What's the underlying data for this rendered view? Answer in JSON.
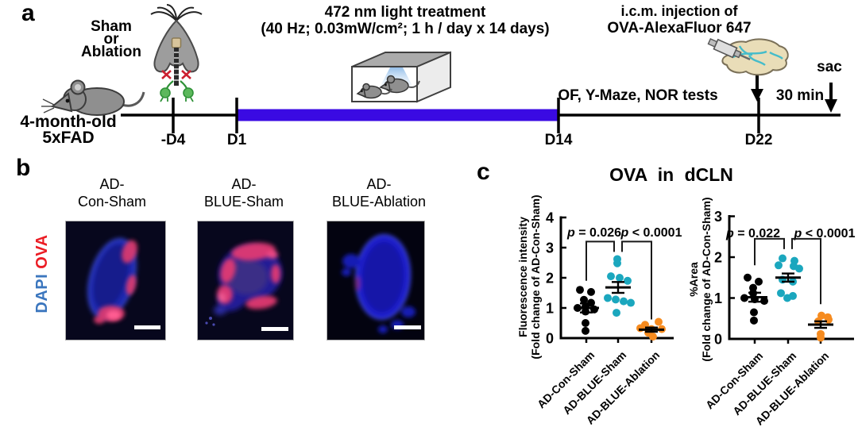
{
  "panel_a": {
    "label": "a",
    "subject_line1": "4-month-old",
    "subject_line2": "5xFAD",
    "surgery_line1": "Sham",
    "surgery_line2": "or",
    "surgery_line3": "Ablation",
    "light_title": "472 nm light treatment",
    "light_params": "(40 Hz; 0.03mW/cm²; 1 h / day x 14 days)",
    "icm_line1": "i.c.m. injection of",
    "icm_line2": "OVA-AlexaFluor 647",
    "tests_label": "OF, Y-Maze, NOR tests",
    "wait_label": "30 min",
    "sac_label": "sac",
    "timeline_ticks": [
      "-D4",
      "D1",
      "D14",
      "D22"
    ],
    "treatment_bar_color": "#3A0AE3"
  },
  "panel_b": {
    "label": "b",
    "stain_blue": "DAPI",
    "stain_red": "OVA",
    "stain_blue_color": "#3B76BE",
    "stain_red_color": "#EB1C24",
    "images": [
      {
        "line1": "AD-",
        "line2": "Con-Sham"
      },
      {
        "line1": "AD-",
        "line2": "BLUE-Sham"
      },
      {
        "line1": "AD-",
        "line2": "BLUE-Ablation"
      }
    ]
  },
  "panel_c": {
    "label": "c",
    "title": "OVA in dCLN"
  },
  "chart_data": [
    {
      "type": "scatter",
      "title": "OVA in dCLN",
      "ylabel": "Fluorescence intensity",
      "ylabel2": "(Fold change of AD-Con-Sham)",
      "xlabel": "",
      "ylim": [
        0,
        4
      ],
      "yticks": [
        0,
        1,
        2,
        3,
        4
      ],
      "grid": false,
      "categories": [
        "AD-Con-Sham",
        "AD-BLUE-Sham",
        "AD-BLUE-Ablation"
      ],
      "groups": [
        {
          "name": "AD-Con-Sham",
          "color": "#000000",
          "mean": 1.0,
          "sem": 0.15,
          "points": [
            [
              1.6,
              -8
            ],
            [
              1.53,
              6
            ],
            [
              1.27,
              -3
            ],
            [
              1.17,
              6
            ],
            [
              1.05,
              -1
            ],
            [
              1.0,
              -11
            ],
            [
              0.95,
              10
            ],
            [
              0.88,
              -1
            ],
            [
              0.5,
              -1
            ],
            [
              0.24,
              -1
            ]
          ]
        },
        {
          "name": "AD-BLUE-Sham",
          "color": "#1BA7BE",
          "mean": 1.68,
          "sem": 0.18,
          "points": [
            [
              2.62,
              -1
            ],
            [
              2.48,
              -1
            ],
            [
              2.05,
              -9
            ],
            [
              2.0,
              2
            ],
            [
              1.9,
              12
            ],
            [
              1.33,
              -13
            ],
            [
              1.28,
              -3
            ],
            [
              1.22,
              7
            ],
            [
              1.17,
              16
            ],
            [
              0.84,
              -2
            ]
          ]
        },
        {
          "name": "AD-BLUE-Ablation",
          "color": "#F68B1F",
          "mean": 0.28,
          "sem": 0.07,
          "points": [
            [
              0.54,
              9
            ],
            [
              0.44,
              -8
            ],
            [
              0.33,
              -14
            ],
            [
              0.3,
              0
            ],
            [
              0.3,
              13
            ],
            [
              0.18,
              -4
            ],
            [
              0.05,
              2
            ]
          ]
        }
      ],
      "significance": [
        {
          "symbol": "p",
          "text": " = 0.026",
          "between": [
            "AD-Con-Sham",
            "AD-BLUE-Sham"
          ]
        },
        {
          "symbol": "p",
          "text": " < 0.0001",
          "between": [
            "AD-BLUE-Sham",
            "AD-BLUE-Ablation"
          ]
        }
      ]
    },
    {
      "type": "scatter",
      "title": "OVA in dCLN",
      "ylabel": "%Area",
      "ylabel2": "(Fold change of AD-Con-Sham)",
      "xlabel": "",
      "ylim": [
        0,
        3
      ],
      "yticks": [
        0,
        1,
        2,
        3
      ],
      "grid": false,
      "categories": [
        "AD-Con-Sham",
        "AD-BLUE-Sham",
        "AD-BLUE-Ablation"
      ],
      "groups": [
        {
          "name": "AD-Con-Sham",
          "color": "#000000",
          "mean": 1.02,
          "sem": 0.11,
          "points": [
            [
              1.5,
              -9
            ],
            [
              1.4,
              5
            ],
            [
              1.25,
              -2
            ],
            [
              1.12,
              -2
            ],
            [
              1.0,
              -13
            ],
            [
              0.97,
              0
            ],
            [
              0.93,
              12
            ],
            [
              0.65,
              -1
            ],
            [
              0.45,
              -1
            ]
          ]
        },
        {
          "name": "AD-BLUE-Sham",
          "color": "#1BA7BE",
          "mean": 1.5,
          "sem": 0.1,
          "points": [
            [
              1.97,
              -7
            ],
            [
              1.91,
              8
            ],
            [
              1.8,
              -12
            ],
            [
              1.78,
              7
            ],
            [
              1.72,
              14
            ],
            [
              1.45,
              -7
            ],
            [
              1.4,
              6
            ],
            [
              1.12,
              -9
            ],
            [
              1.05,
              6
            ],
            [
              1.0,
              -1
            ]
          ]
        },
        {
          "name": "AD-BLUE-Ablation",
          "color": "#F68B1F",
          "mean": 0.35,
          "sem": 0.08,
          "points": [
            [
              0.57,
              1
            ],
            [
              0.53,
              9
            ],
            [
              0.47,
              10
            ],
            [
              0.43,
              -3
            ],
            [
              0.12,
              0
            ],
            [
              0.03,
              0
            ]
          ]
        }
      ],
      "significance": [
        {
          "symbol": "p",
          "text": " = 0.022",
          "between": [
            "AD-Con-Sham",
            "AD-BLUE-Sham"
          ]
        },
        {
          "symbol": "p",
          "text": " < 0.0001",
          "between": [
            "AD-BLUE-Sham",
            "AD-BLUE-Ablation"
          ]
        }
      ]
    }
  ]
}
